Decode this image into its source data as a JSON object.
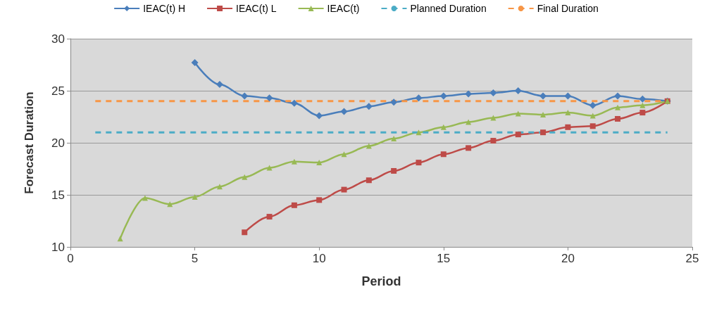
{
  "chart_data": {
    "type": "line",
    "xlabel": "Period",
    "ylabel": "Forecast Duration",
    "xlim": [
      0,
      25
    ],
    "xticks": [
      0,
      5,
      10,
      15,
      20,
      25
    ],
    "ylim": [
      10,
      30
    ],
    "yticks": [
      10,
      15,
      20,
      25,
      30
    ],
    "grid": "y",
    "legend": "top",
    "series": [
      {
        "name": "IEAC(t) H",
        "color": "#4a7ebb",
        "marker": "diamond",
        "line_style": "solid",
        "x": [
          5,
          6,
          7,
          8,
          9,
          10,
          11,
          12,
          13,
          14,
          15,
          16,
          17,
          18,
          19,
          20,
          21,
          22,
          23,
          24
        ],
        "values": [
          27.7,
          25.6,
          24.5,
          24.3,
          23.8,
          22.6,
          23.0,
          23.5,
          23.9,
          24.3,
          24.5,
          24.7,
          24.8,
          25.0,
          24.5,
          24.5,
          23.6,
          24.5,
          24.2,
          24.0
        ]
      },
      {
        "name": "IEAC(t) L",
        "color": "#be4b48",
        "marker": "square",
        "line_style": "solid",
        "x": [
          7,
          8,
          9,
          10,
          11,
          12,
          13,
          14,
          15,
          16,
          17,
          18,
          19,
          20,
          21,
          22,
          23,
          24
        ],
        "values": [
          11.4,
          12.9,
          14.0,
          14.5,
          15.5,
          16.4,
          17.3,
          18.1,
          18.9,
          19.5,
          20.2,
          20.8,
          21.0,
          21.5,
          21.6,
          22.3,
          22.9,
          24.0
        ]
      },
      {
        "name": "IEAC(t)",
        "color": "#98b954",
        "marker": "triangle",
        "line_style": "solid",
        "x": [
          2,
          3,
          4,
          5,
          6,
          7,
          8,
          9,
          10,
          11,
          12,
          13,
          14,
          15,
          16,
          17,
          18,
          19,
          20,
          21,
          22,
          23,
          24
        ],
        "values": [
          10.8,
          14.7,
          14.1,
          14.8,
          15.8,
          16.7,
          17.6,
          18.2,
          18.1,
          18.9,
          19.7,
          20.4,
          21.0,
          21.5,
          22.0,
          22.4,
          22.8,
          22.7,
          22.9,
          22.6,
          23.4,
          23.6,
          24.0
        ]
      },
      {
        "name": "Planned Duration",
        "color": "#4bacc6",
        "marker": "none",
        "line_style": "dashed",
        "x": [
          1,
          24
        ],
        "values": [
          21,
          21
        ]
      },
      {
        "name": "Final Duration",
        "color": "#f79646",
        "marker": "none",
        "line_style": "dashed",
        "x": [
          1,
          24
        ],
        "values": [
          24,
          24
        ]
      }
    ]
  }
}
